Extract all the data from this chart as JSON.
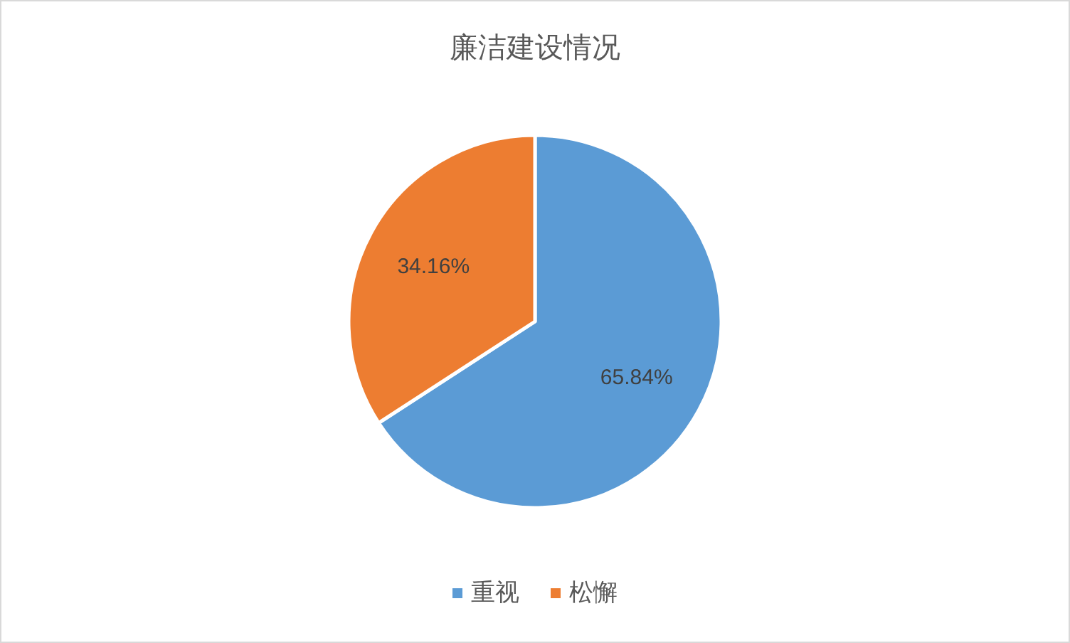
{
  "chart_data": {
    "type": "pie",
    "title": "廉洁建设情况",
    "categories": [
      "重视",
      "松懈"
    ],
    "values": [
      65.84,
      34.16
    ],
    "colors": [
      "#5b9bd5",
      "#ed7d31"
    ],
    "value_labels": [
      "65.84%",
      "34.16%"
    ],
    "legend": "bottom"
  }
}
